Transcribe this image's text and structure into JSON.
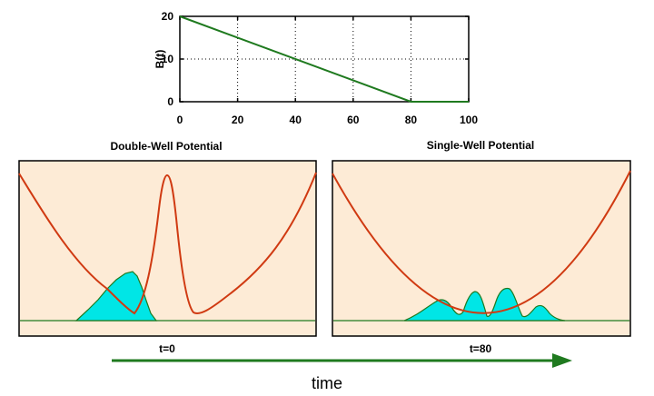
{
  "chart_data": {
    "type": "line",
    "ylabel": "B(t)",
    "xlabel": "",
    "xlim": [
      0,
      100
    ],
    "ylim": [
      0,
      20
    ],
    "x_ticks": [
      "0",
      "20",
      "40",
      "60",
      "80",
      "100"
    ],
    "y_ticks": [
      "0",
      "10",
      "20"
    ],
    "grid": "dotted",
    "series": [
      {
        "name": "B(t)",
        "x": [
          0,
          80,
          100
        ],
        "y": [
          20,
          0,
          0
        ],
        "color": "#1f7a1f"
      }
    ]
  },
  "panels": [
    {
      "title": "Double-Well Potential",
      "time_label": "t=0",
      "potential": "double-well",
      "potential_color": "#d03a12",
      "wavepacket_color": "#00e6e6",
      "background": "#fdebd6"
    },
    {
      "title": "Single-Well Potential",
      "time_label": "t=80",
      "potential": "single-well",
      "potential_color": "#d03a12",
      "wavepacket_color": "#00e6e6",
      "background": "#fdebd6"
    }
  ],
  "time_axis": {
    "label": "time",
    "color": "#1f7a1f"
  }
}
